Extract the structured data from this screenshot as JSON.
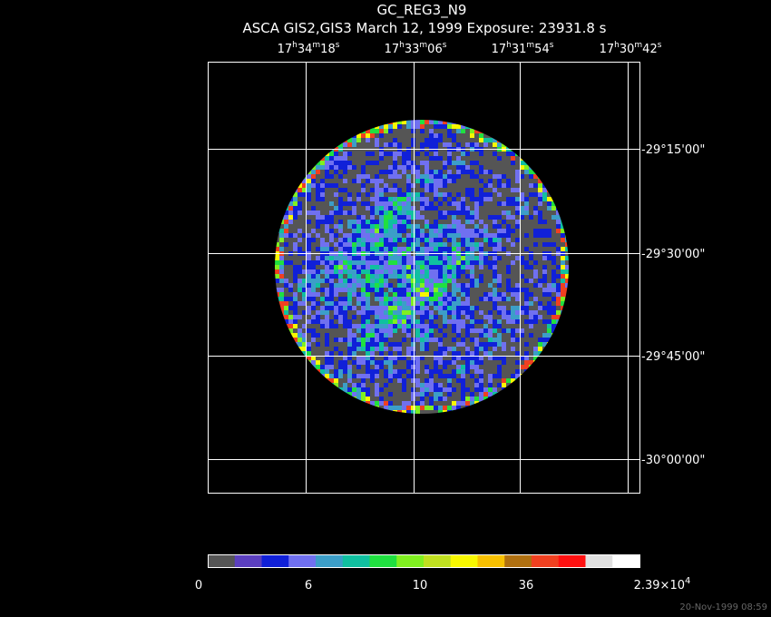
{
  "title": "GC_REG3_N9",
  "subtitle": "ASCA GIS2,GIS3 March 12, 1999 Exposure: 23931.8 s",
  "ra_labels": [
    [
      "17",
      "h",
      "34",
      "m",
      "18",
      "s"
    ],
    [
      "17",
      "h",
      "33",
      "m",
      "06",
      "s"
    ],
    [
      "17",
      "h",
      "31",
      "m",
      "54",
      "s"
    ],
    [
      "17",
      "h",
      "30",
      "m",
      "42",
      "s"
    ]
  ],
  "dec_labels": [
    "-29°15'00\"",
    "-29°30'00\"",
    "-29°45'00\"",
    "-30°00'00\""
  ],
  "colorbar": {
    "colors": [
      "#555555",
      "#5b3fbf",
      "#1020d8",
      "#7070f0",
      "#3c9ec8",
      "#10c0a0",
      "#20e040",
      "#80f020",
      "#c0e020",
      "#f8f800",
      "#f8c000",
      "#b07010",
      "#f04020",
      "#ff1010",
      "#e0e0e0",
      "#ffffff"
    ],
    "labels": [
      [
        "0"
      ],
      [
        "6"
      ],
      [
        "10"
      ],
      [
        "36"
      ],
      [
        "2.39×10",
        "4"
      ]
    ]
  },
  "timestamp": "20-Nov-1999 08:59"
}
